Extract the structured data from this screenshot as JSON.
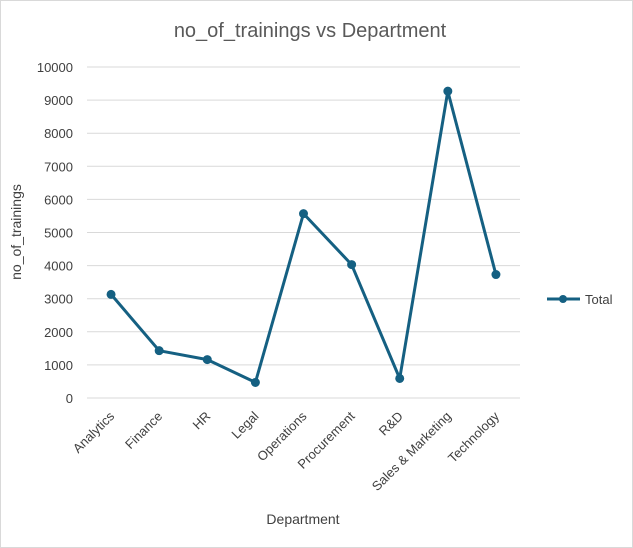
{
  "chart_data": {
    "type": "line",
    "title": "no_of_trainings vs Department",
    "xlabel": "Department",
    "ylabel": "no_of_trainings",
    "categories": [
      "Analytics",
      "Finance",
      "HR",
      "Legal",
      "Operations",
      "Procurement",
      "R&D",
      "Sales & Marketing",
      "Technology"
    ],
    "series": [
      {
        "name": "Total",
        "values": [
          3130,
          1430,
          1160,
          470,
          5570,
          4030,
          590,
          9270,
          3730
        ],
        "color": "#156082"
      }
    ],
    "ylim": [
      0,
      10000
    ],
    "yticks": [
      "0",
      "1000",
      "2000",
      "3000",
      "4000",
      "5000",
      "6000",
      "7000",
      "8000",
      "9000",
      "10000"
    ],
    "grid": true,
    "legend_position": "right"
  }
}
